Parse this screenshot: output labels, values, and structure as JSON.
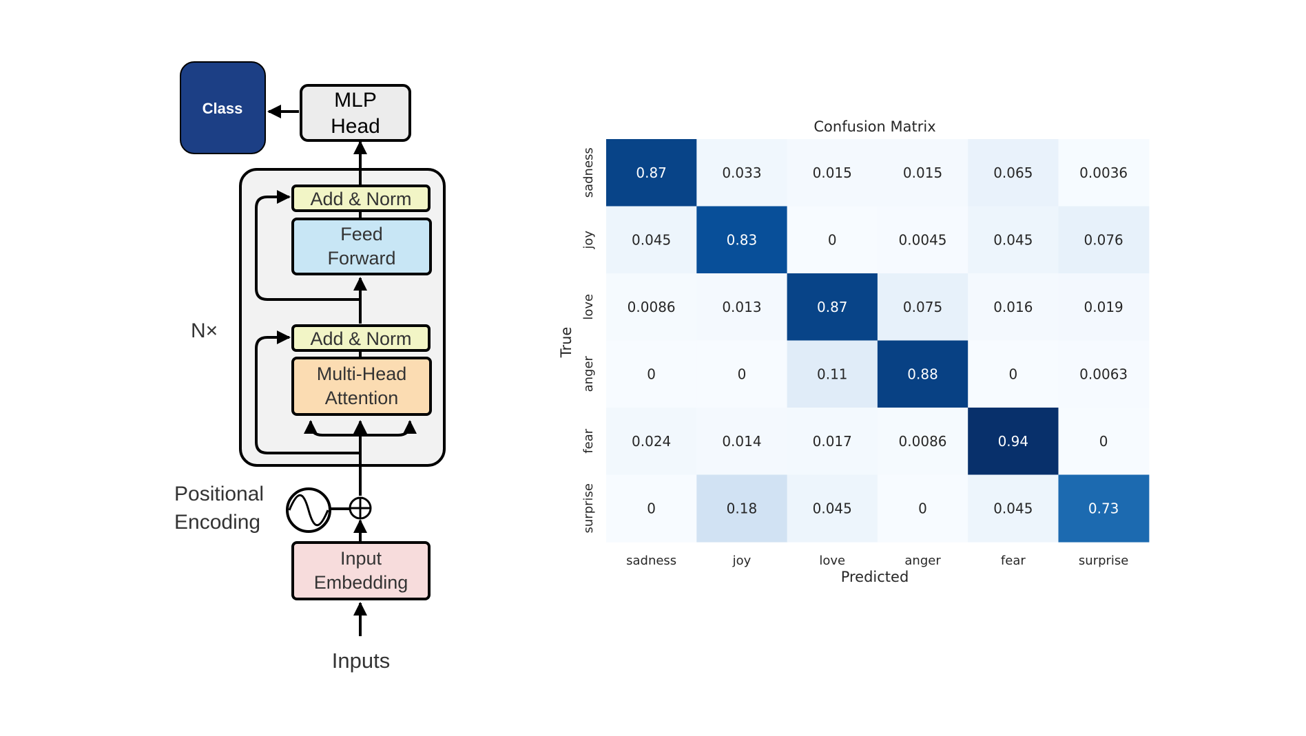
{
  "diagram": {
    "class_label": "Class",
    "mlp_head": [
      "MLP",
      "Head"
    ],
    "add_norm_top": "Add & Norm",
    "feed_forward": [
      "Feed",
      "Forward"
    ],
    "add_norm_bottom": "Add & Norm",
    "multi_head_attention": [
      "Multi-Head",
      "Attention"
    ],
    "nx_label": "N×",
    "positional_encoding": [
      "Positional",
      "Encoding"
    ],
    "input_embedding": [
      "Input",
      "Embedding"
    ],
    "inputs_label": "Inputs",
    "colors": {
      "class_fill": "#1c3f85",
      "mlp_fill": "#ececec",
      "add_norm_fill": "#f2f5c6",
      "feed_forward_fill": "#c8e6f5",
      "attention_fill": "#fbdcb2",
      "embedding_fill": "#f7dcdc",
      "block_fill": "#f2f2f2"
    }
  },
  "chart_data": {
    "type": "heatmap",
    "title": "Confusion Matrix",
    "xlabel": "Predicted",
    "ylabel": "True",
    "x_categories": [
      "sadness",
      "joy",
      "love",
      "anger",
      "fear",
      "surprise"
    ],
    "y_categories": [
      "sadness",
      "joy",
      "love",
      "anger",
      "fear",
      "surprise"
    ],
    "values": [
      [
        "0.87",
        "0.033",
        "0.015",
        "0.015",
        "0.065",
        "0.0036"
      ],
      [
        "0.045",
        "0.83",
        "0",
        "0.0045",
        "0.045",
        "0.076"
      ],
      [
        "0.0086",
        "0.013",
        "0.87",
        "0.075",
        "0.016",
        "0.019"
      ],
      [
        "0",
        "0",
        "0.11",
        "0.88",
        "0",
        "0.0063"
      ],
      [
        "0.024",
        "0.014",
        "0.017",
        "0.0086",
        "0.94",
        "0"
      ],
      [
        "0",
        "0.18",
        "0.045",
        "0",
        "0.045",
        "0.73"
      ]
    ],
    "colormap": "Blues",
    "value_range": [
      0,
      0.94
    ]
  }
}
